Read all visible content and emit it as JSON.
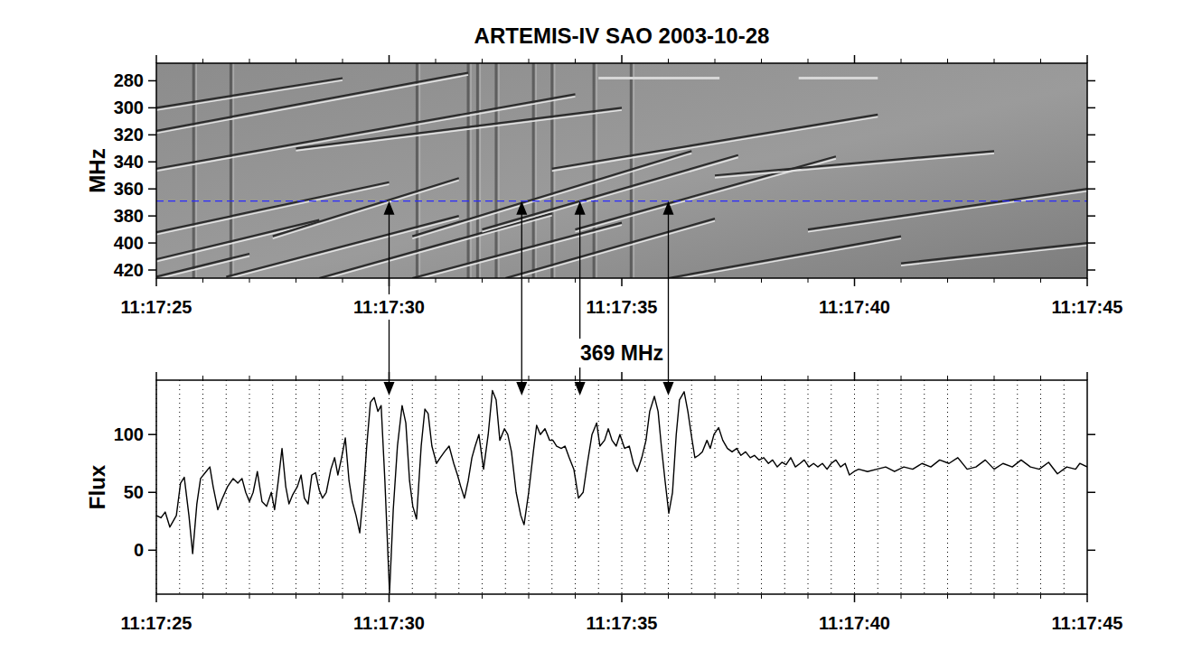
{
  "chart_data": [
    {
      "type": "spectrogram",
      "title": "ARTEMIS-IV  SAO 2003-10-28",
      "y_label": "MHz",
      "xlim": [
        0,
        20
      ],
      "xticks": [
        {
          "value": 0,
          "label": "11:17:25"
        },
        {
          "value": 5,
          "label": "11:17:30"
        },
        {
          "value": 10,
          "label": "11:17:35"
        },
        {
          "value": 15,
          "label": "11:17:40"
        },
        {
          "value": 20,
          "label": "11:17:45"
        }
      ],
      "ylim": [
        426,
        267
      ],
      "yticks": [
        280,
        300,
        320,
        340,
        360,
        380,
        400,
        420
      ],
      "grid": false,
      "reference_frequency": 369,
      "arrow_times": [
        5.0,
        7.85,
        9.1,
        11.0
      ],
      "fibers": [
        {
          "x": [
            0,
            6.7
          ],
          "y": [
            317,
            274
          ]
        },
        {
          "x": [
            0,
            9
          ],
          "y": [
            345,
            290
          ]
        },
        {
          "x": [
            0,
            5
          ],
          "y": [
            392,
            355
          ]
        },
        {
          "x": [
            0,
            3.5
          ],
          "y": [
            412,
            383
          ]
        },
        {
          "x": [
            0,
            2
          ],
          "y": [
            425,
            408
          ]
        },
        {
          "x": [
            1.5,
            6.5
          ],
          "y": [
            425,
            380
          ]
        },
        {
          "x": [
            2.5,
            6.5
          ],
          "y": [
            395,
            352
          ]
        },
        {
          "x": [
            3.5,
            8.5
          ],
          "y": [
            426,
            378
          ]
        },
        {
          "x": [
            5.5,
            11.5
          ],
          "y": [
            395,
            332
          ]
        },
        {
          "x": [
            7.0,
            12.5
          ],
          "y": [
            390,
            335
          ]
        },
        {
          "x": [
            9.0,
            14.6
          ],
          "y": [
            390,
            336
          ]
        },
        {
          "x": [
            5.5,
            10
          ],
          "y": [
            426,
            385
          ]
        },
        {
          "x": [
            7.5,
            12
          ],
          "y": [
            426,
            382
          ]
        },
        {
          "x": [
            11,
            16
          ],
          "y": [
            426,
            395
          ]
        },
        {
          "x": [
            14,
            20
          ],
          "y": [
            390,
            360
          ]
        },
        {
          "x": [
            3,
            10
          ],
          "y": [
            330,
            300
          ]
        },
        {
          "x": [
            8.5,
            15.5
          ],
          "y": [
            345,
            305
          ]
        },
        {
          "x": [
            12,
            18
          ],
          "y": [
            350,
            332
          ]
        },
        {
          "x": [
            16,
            20
          ],
          "y": [
            415,
            400
          ]
        },
        {
          "x": [
            0,
            4
          ],
          "y": [
            300,
            278
          ]
        }
      ],
      "vertical_bursts": [
        0.8,
        1.6,
        5.6,
        6.7,
        6.9,
        7.3,
        8.1,
        8.5,
        9.4,
        10.2
      ],
      "horizontal_lines": [
        {
          "x": [
            9.5,
            12.1
          ],
          "y": 278
        },
        {
          "x": [
            13.8,
            15.5
          ],
          "y": 278
        }
      ]
    },
    {
      "type": "line",
      "title": "369 MHz",
      "y_label": "Flux",
      "color": "#000000",
      "xlim": [
        0,
        20
      ],
      "xticks": [
        {
          "value": 0,
          "label": "11:17:25"
        },
        {
          "value": 5,
          "label": "11:17:30"
        },
        {
          "value": 10,
          "label": "11:17:35"
        },
        {
          "value": 15,
          "label": "11:17:40"
        },
        {
          "value": 20,
          "label": "11:17:45"
        }
      ],
      "ylim": [
        -38,
        147
      ],
      "yticks": [
        0,
        50,
        100
      ],
      "grid": true,
      "x": [
        0,
        0.1,
        0.19,
        0.29,
        0.43,
        0.52,
        0.6,
        0.7,
        0.78,
        0.87,
        0.95,
        1.05,
        1.15,
        1.22,
        1.32,
        1.42,
        1.53,
        1.65,
        1.75,
        1.84,
        1.92,
        2.0,
        2.08,
        2.17,
        2.27,
        2.37,
        2.47,
        2.54,
        2.62,
        2.7,
        2.78,
        2.85,
        2.93,
        3.03,
        3.11,
        3.18,
        3.26,
        3.34,
        3.42,
        3.5,
        3.57,
        3.65,
        3.75,
        3.83,
        3.9,
        3.98,
        4.06,
        4.14,
        4.21,
        4.29,
        4.37,
        4.45,
        4.52,
        4.6,
        4.68,
        4.76,
        4.83,
        4.91,
        5.01,
        5.09,
        5.18,
        5.28,
        5.36,
        5.44,
        5.51,
        5.59,
        5.69,
        5.77,
        5.84,
        5.92,
        6.02,
        6.1,
        6.19,
        6.29,
        6.39,
        6.47,
        6.54,
        6.62,
        6.7,
        6.78,
        6.85,
        6.93,
        7.03,
        7.13,
        7.22,
        7.3,
        7.38,
        7.48,
        7.55,
        7.63,
        7.73,
        7.83,
        7.9,
        8.0,
        8.1,
        8.17,
        8.25,
        8.35,
        8.45,
        8.52,
        8.6,
        8.7,
        8.78,
        8.87,
        8.97,
        9.07,
        9.17,
        9.26,
        9.36,
        9.46,
        9.53,
        9.63,
        9.71,
        9.79,
        9.88,
        9.96,
        10.06,
        10.16,
        10.25,
        10.33,
        10.43,
        10.52,
        10.6,
        10.7,
        10.78,
        10.85,
        10.93,
        11.01,
        11.09,
        11.17,
        11.24,
        11.34,
        11.42,
        11.5,
        11.57,
        11.65,
        11.73,
        11.83,
        11.9,
        11.98,
        12.08,
        12.17,
        12.27,
        12.37,
        12.47,
        12.56,
        12.66,
        12.76,
        12.85,
        12.95,
        13.05,
        13.15,
        13.24,
        13.34,
        13.44,
        13.53,
        13.63,
        13.73,
        13.83,
        13.92,
        14.02,
        14.12,
        14.21,
        14.31,
        14.41,
        14.5,
        14.6,
        14.7,
        14.8,
        14.89,
        14.99,
        15.09,
        15.28,
        15.48,
        15.67,
        15.86,
        16.06,
        16.25,
        16.45,
        16.64,
        16.83,
        17.03,
        17.22,
        17.42,
        17.61,
        17.81,
        18.0,
        18.19,
        18.39,
        18.58,
        18.78,
        18.97,
        19.17,
        19.36,
        19.56,
        19.75,
        19.84,
        20.0
      ],
      "values": [
        30,
        28,
        33,
        20,
        30,
        58,
        63,
        30,
        -3,
        40,
        62,
        67,
        72,
        55,
        35,
        45,
        55,
        62,
        58,
        62,
        50,
        42,
        50,
        68,
        42,
        38,
        50,
        35,
        60,
        88,
        55,
        40,
        48,
        55,
        65,
        45,
        40,
        65,
        67,
        52,
        45,
        50,
        70,
        80,
        65,
        80,
        97,
        60,
        42,
        30,
        15,
        50,
        90,
        128,
        132,
        120,
        125,
        60,
        -37,
        35,
        90,
        125,
        110,
        60,
        38,
        27,
        90,
        122,
        118,
        90,
        75,
        80,
        85,
        90,
        75,
        65,
        55,
        45,
        60,
        80,
        90,
        100,
        70,
        100,
        138,
        130,
        95,
        105,
        100,
        85,
        50,
        30,
        22,
        50,
        85,
        108,
        100,
        105,
        95,
        95,
        90,
        88,
        90,
        80,
        70,
        45,
        50,
        75,
        100,
        110,
        90,
        95,
        105,
        95,
        90,
        100,
        88,
        90,
        75,
        68,
        80,
        95,
        120,
        133,
        120,
        90,
        60,
        32,
        50,
        100,
        130,
        137,
        120,
        98,
        80,
        82,
        85,
        95,
        88,
        100,
        106,
        95,
        88,
        85,
        88,
        82,
        85,
        80,
        82,
        78,
        80,
        75,
        78,
        72,
        76,
        74,
        80,
        72,
        75,
        78,
        72,
        75,
        72,
        75,
        70,
        75,
        78,
        72,
        75,
        65,
        68,
        70,
        68,
        70,
        72,
        68,
        72,
        70,
        75,
        72,
        78,
        75,
        80,
        70,
        72,
        78,
        70,
        75,
        72,
        78,
        72,
        70,
        76,
        66,
        72,
        70,
        75,
        72
      ]
    }
  ]
}
